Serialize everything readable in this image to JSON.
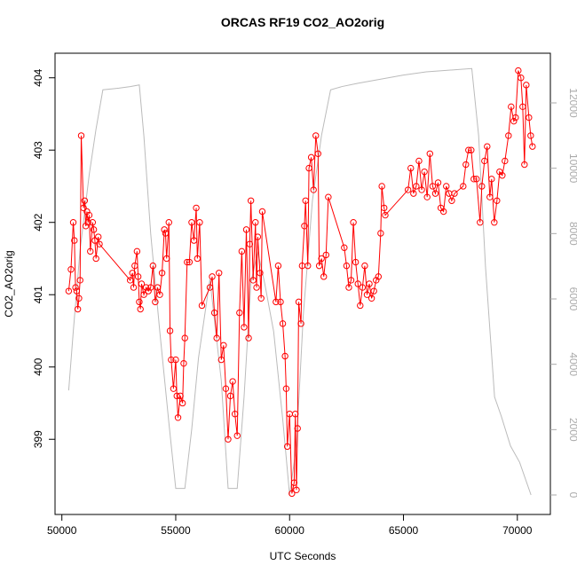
{
  "chart_data": {
    "type": "line",
    "title": "ORCAS RF19 CO2_AO2orig",
    "xlabel": "UTC Seconds",
    "ylabel": "CO2_AO2orig",
    "xlim": [
      49700,
      71450
    ],
    "xticks": [
      50000,
      55000,
      60000,
      65000,
      70000
    ],
    "ylim": [
      397.96,
      404.34
    ],
    "yticks": [
      399,
      400,
      401,
      402,
      403,
      404
    ],
    "y2lim": [
      -597,
      13520
    ],
    "y2ticks": [
      0,
      2000,
      4000,
      6000,
      8000,
      10000,
      12000
    ],
    "series": [
      {
        "color": "#bbbbbb",
        "axis": "y2",
        "markers": false,
        "x": [
          50300,
          50500,
          50800,
          51200,
          51500,
          51800,
          52500,
          53000,
          53400,
          53600,
          53900,
          54300,
          54700,
          55000,
          55400,
          55700,
          56000,
          56500,
          57000,
          57300,
          57700,
          58000,
          58300,
          58600,
          58900,
          59300,
          59700,
          60000,
          60300,
          60600,
          61000,
          61400,
          61800,
          62300,
          63000,
          65000,
          66000,
          67000,
          68000,
          68300,
          68600,
          69000,
          69300,
          69700,
          70100,
          70600
        ],
        "values": [
          3200,
          5000,
          7500,
          9800,
          11200,
          12400,
          12450,
          12500,
          12550,
          11000,
          8000,
          5000,
          2200,
          200,
          200,
          2000,
          4200,
          6600,
          3500,
          200,
          200,
          3000,
          6500,
          7450,
          6500,
          5000,
          2300,
          0,
          1500,
          5500,
          9000,
          11000,
          12400,
          12500,
          12600,
          12850,
          12950,
          13000,
          13050,
          11000,
          7000,
          3000,
          2400,
          1500,
          1000,
          0
        ]
      },
      {
        "color": "#ff0000",
        "markers": true,
        "x": [
          50300,
          50400,
          50500,
          50550,
          50600,
          50650,
          50700,
          50750,
          50800,
          50850,
          50950,
          51000,
          51050,
          51100,
          51150,
          51200,
          51250,
          51350,
          51400,
          51450,
          51500,
          51600,
          51650,
          53000,
          53100,
          53150,
          53200,
          53300,
          53350,
          53400,
          53450,
          53500,
          53600,
          53700,
          53800,
          53900,
          54000,
          54100,
          54200,
          54300,
          54400,
          54500,
          54550,
          54600,
          54700,
          54750,
          54800,
          54900,
          55000,
          55050,
          55100,
          55200,
          55300,
          55350,
          55400,
          55500,
          55600,
          55700,
          55800,
          55900,
          55950,
          56050,
          56150,
          56500,
          56600,
          56700,
          56800,
          56900,
          57000,
          57100,
          57200,
          57300,
          57400,
          57500,
          57600,
          57700,
          57800,
          57900,
          58000,
          58100,
          58200,
          58250,
          58300,
          58400,
          58500,
          58550,
          58600,
          58700,
          58750,
          58800,
          59400,
          59500,
          59600,
          59700,
          59800,
          59850,
          59900,
          60000,
          60100,
          60200,
          60250,
          60300,
          60350,
          60400,
          60500,
          60550,
          60650,
          60700,
          60800,
          60850,
          60950,
          61050,
          61150,
          61250,
          61300,
          61400,
          61500,
          61600,
          61700,
          62400,
          62500,
          62600,
          62700,
          62800,
          62900,
          63000,
          63100,
          63200,
          63300,
          63400,
          63500,
          63600,
          63700,
          63800,
          63900,
          64000,
          64050,
          64150,
          64200,
          65200,
          65320,
          65440,
          65560,
          65680,
          65800,
          65920,
          66040,
          66160,
          66280,
          66400,
          66520,
          66640,
          66760,
          66880,
          67000,
          67120,
          67240,
          67622,
          67739,
          67856,
          67973,
          68090,
          68207,
          68363,
          68441,
          68558,
          68675,
          68792,
          68870,
          68987,
          69104,
          69221,
          69338,
          69455,
          69611,
          69728,
          69845,
          69923,
          70040,
          70157,
          70235,
          70313,
          70391,
          70508,
          70586,
          70664
        ],
        "values": [
          401.05,
          401.35,
          402.0,
          401.75,
          401.1,
          401.05,
          400.8,
          400.95,
          401.2,
          403.2,
          402.2,
          402.3,
          401.95,
          402.15,
          402.0,
          402.1,
          401.6,
          402.0,
          401.9,
          401.75,
          401.5,
          401.8,
          401.7,
          401.2,
          401.3,
          401.1,
          401.4,
          401.6,
          401.25,
          400.9,
          400.8,
          401.15,
          401.0,
          401.1,
          401.05,
          401.1,
          401.4,
          400.9,
          401.1,
          401.0,
          401.3,
          401.9,
          401.85,
          401.5,
          402.0,
          400.5,
          400.1,
          399.7,
          400.1,
          399.6,
          399.3,
          399.6,
          399.5,
          400.05,
          400.4,
          401.45,
          401.45,
          402.0,
          401.75,
          402.2,
          401.5,
          402.0,
          400.85,
          401.1,
          401.25,
          400.75,
          400.4,
          401.3,
          400.1,
          400.3,
          399.7,
          399.0,
          399.6,
          399.8,
          399.35,
          399.05,
          400.75,
          401.6,
          400.55,
          401.9,
          400.4,
          401.7,
          402.3,
          401.2,
          402.0,
          401.1,
          401.8,
          401.3,
          400.95,
          402.15,
          400.9,
          401.4,
          400.9,
          400.6,
          400.15,
          399.7,
          398.9,
          399.35,
          398.25,
          398.4,
          399.35,
          398.3,
          399.15,
          400.9,
          400.6,
          401.4,
          401.95,
          402.3,
          401.4,
          402.75,
          402.9,
          402.45,
          403.2,
          402.95,
          401.4,
          401.5,
          401.25,
          401.55,
          402.35,
          401.65,
          401.4,
          401.1,
          401.2,
          402.0,
          401.45,
          401.15,
          400.85,
          401.1,
          401.4,
          401.0,
          401.15,
          400.95,
          401.05,
          401.2,
          401.25,
          401.85,
          402.5,
          402.2,
          402.1,
          402.45,
          402.75,
          402.4,
          402.5,
          402.85,
          402.45,
          402.7,
          402.35,
          402.95,
          402.5,
          402.4,
          402.55,
          402.2,
          402.15,
          402.5,
          402.4,
          402.3,
          402.4,
          402.5,
          402.8,
          403.0,
          403.0,
          402.6,
          402.6,
          402.0,
          402.5,
          402.85,
          403.05,
          402.35,
          402.6,
          402.0,
          402.3,
          402.7,
          402.65,
          402.85,
          403.2,
          403.6,
          403.4,
          403.45,
          404.1,
          404.0,
          403.6,
          402.8,
          403.9,
          403.45,
          403.2,
          403.05
        ]
      }
    ]
  }
}
